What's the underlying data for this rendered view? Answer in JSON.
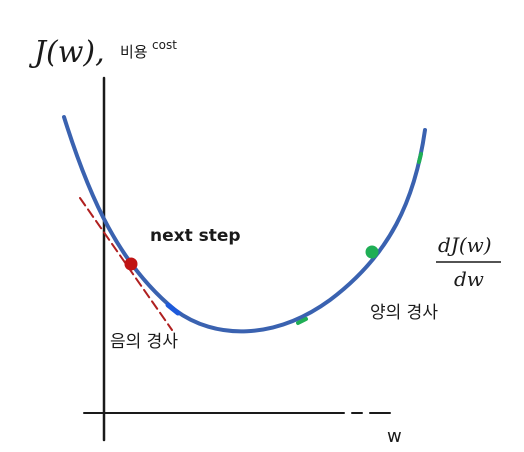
{
  "labels": {
    "j_of_w": "J(w),",
    "cost_korean": "비용",
    "cost_english": "cost",
    "next_step": "next step",
    "derivative_numerator": "dJ(w)",
    "derivative_denominator": "dw",
    "positive_slope": "양의 경사",
    "negative_slope": "음의 경사",
    "w_axis": "w"
  },
  "colors": {
    "curve": "#3a62b0",
    "tangent": "#b02020",
    "red_point": "#c01414",
    "green_point": "#1fae55",
    "blue_mark": "#1e5adb",
    "axis": "#1a1a1a"
  }
}
